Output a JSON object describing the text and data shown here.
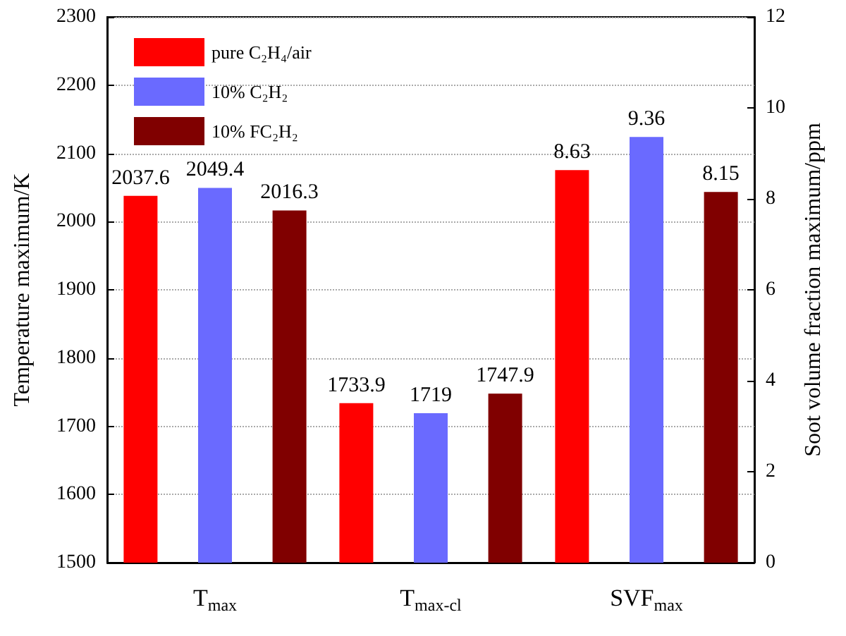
{
  "chart_data": {
    "type": "bar",
    "categories": [
      "T$_{max}$",
      "T$_{max-cl}$",
      "SVF$_{max}$"
    ],
    "series": [
      {
        "name": "pure C₂H₄/air",
        "color": "#ff0000",
        "values": [
          2037.6,
          1733.9,
          null
        ]
      },
      {
        "name": "10% C₂H₂",
        "color": "#6a6aff",
        "values": [
          2049.4,
          1719,
          null
        ]
      },
      {
        "name": "10% FC₂H₂",
        "color": "#800000",
        "values": [
          2016.3,
          1747.9,
          null
        ]
      },
      {
        "color": "#ff0000",
        "axis": "y2",
        "values": [
          null,
          null,
          8.63
        ]
      },
      {
        "color": "#6a6aff",
        "axis": "y2",
        "values": [
          null,
          null,
          9.36
        ]
      },
      {
        "color": "#800000",
        "axis": "y2",
        "values": [
          null,
          null,
          8.15
        ]
      }
    ],
    "ylabel": "Temperature maximum/K",
    "y2label": "Soot volume fraction maximum/ppm",
    "ylim": [
      1500,
      2300
    ],
    "yticks": [
      1500,
      1600,
      1700,
      1800,
      1900,
      2000,
      2100,
      2200,
      2300
    ],
    "y2lim": [
      0,
      12
    ],
    "y2ticks": [
      0,
      2,
      4,
      6,
      8,
      10,
      12
    ],
    "grid": "y",
    "legend": "top left",
    "data_labels": true
  }
}
